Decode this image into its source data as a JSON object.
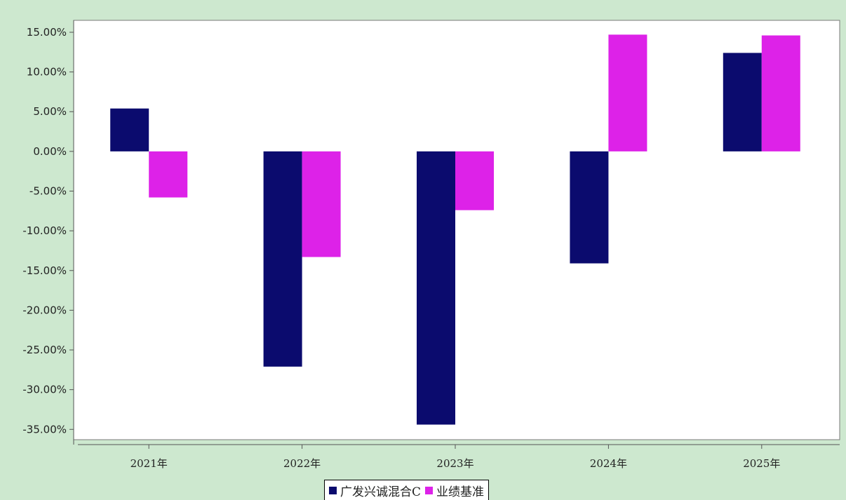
{
  "chart_data": {
    "type": "bar",
    "categories": [
      "2021年",
      "2022年",
      "2023年",
      "2024年",
      "2025年"
    ],
    "series": [
      {
        "name": "广发兴诚混合C",
        "color": "#0b0b6e",
        "values": [
          5.4,
          -27.1,
          -34.4,
          -14.1,
          12.4
        ]
      },
      {
        "name": "业绩基准",
        "color": "#dd22e8",
        "values": [
          -5.8,
          -13.3,
          -7.4,
          14.7,
          14.6
        ]
      }
    ],
    "yticks": [
      "15.00%",
      "10.00%",
      "5.00%",
      "0.00%",
      "-5.00%",
      "-10.00%",
      "-15.00%",
      "-20.00%",
      "-25.00%",
      "-30.00%",
      "-35.00%"
    ],
    "ylim": [
      -35,
      15
    ],
    "grid": false,
    "legend": "bottom-center",
    "background": "#cde8cf",
    "plot_background": "#ffffff"
  }
}
